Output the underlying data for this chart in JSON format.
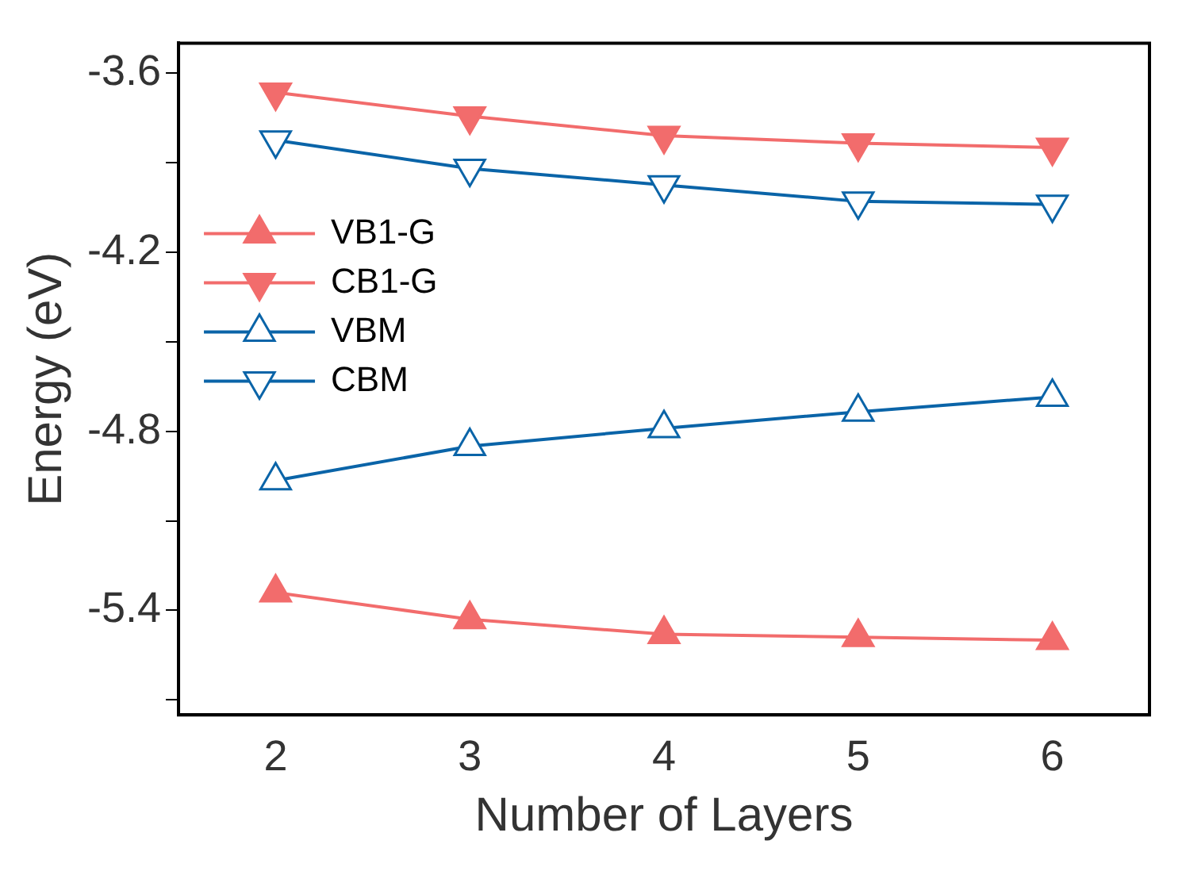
{
  "chart_data": {
    "type": "line",
    "xlabel": "Number of Layers",
    "ylabel": "Energy (eV)",
    "x": [
      2,
      3,
      4,
      5,
      6
    ],
    "series": [
      {
        "name": "VB1-G",
        "color": "#f26c6c",
        "marker": "triangle",
        "values": [
          -5.34,
          -5.43,
          -5.48,
          -5.49,
          -5.5
        ]
      },
      {
        "name": "CB1-G",
        "color": "#f26c6c",
        "marker": "triangle-down",
        "values": [
          -3.665,
          -3.745,
          -3.81,
          -3.835,
          -3.85
        ]
      },
      {
        "name": "VBM",
        "color": "#0a64a8",
        "marker": "triangle-open",
        "values": [
          -4.965,
          -4.85,
          -4.79,
          -4.735,
          -4.685
        ]
      },
      {
        "name": "CBM",
        "color": "#0a64a8",
        "marker": "triangle-down-open",
        "values": [
          -3.825,
          -3.92,
          -3.975,
          -4.03,
          -4.04
        ]
      }
    ],
    "xlim": [
      1.5,
      6.5
    ],
    "xticks": [
      2,
      3,
      4,
      5,
      6
    ],
    "ylim": [
      -5.75,
      -3.5
    ],
    "yticks": [
      -3.6,
      {
        "value": -3.9,
        "label": null
      },
      -4.2,
      {
        "value": -4.5,
        "label": null
      },
      -4.8,
      {
        "value": -5.1,
        "label": null
      },
      -5.4,
      {
        "value": -5.7,
        "label": null
      }
    ],
    "grid": false,
    "legend": "top left",
    "line_style": "solid"
  }
}
